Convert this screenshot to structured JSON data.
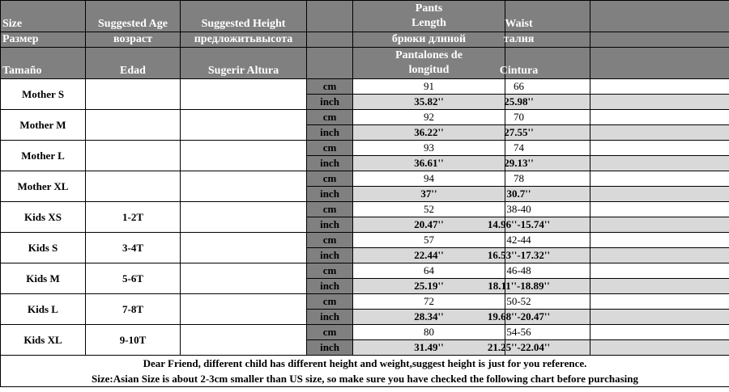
{
  "header": {
    "row1": {
      "size": "Size",
      "age": "Suggested Age",
      "height": "Suggested Height",
      "pants": [
        "Pants",
        "Length"
      ],
      "waist": "Waist"
    },
    "row2": {
      "size": "Размер",
      "age": "возраст",
      "height": "предложитьвысота",
      "pants": "брюки длиной",
      "waist": "талия"
    },
    "row3": {
      "size": "Tamaño",
      "age": "Edad",
      "height": "Sugerir Altura",
      "pants": [
        "Pantalones de",
        "longitud"
      ],
      "waist": "Cintura"
    }
  },
  "units": {
    "cm": "cm",
    "inch": "inch"
  },
  "rows": [
    {
      "name": "Mother S",
      "age": "",
      "cm_length": "91",
      "cm_waist": "66",
      "in_length": "35.82''",
      "in_waist": "25.98''"
    },
    {
      "name": "Mother M",
      "age": "",
      "cm_length": "92",
      "cm_waist": "70",
      "in_length": "36.22''",
      "in_waist": "27.55''"
    },
    {
      "name": "Mother L",
      "age": "",
      "cm_length": "93",
      "cm_waist": "74",
      "in_length": "36.61''",
      "in_waist": "29.13''"
    },
    {
      "name": "Mother XL",
      "age": "",
      "cm_length": "94",
      "cm_waist": "78",
      "in_length": "37''",
      "in_waist": "30.7''"
    },
    {
      "name": "Kids XS",
      "age": "1-2T",
      "cm_length": "52",
      "cm_waist": "38-40",
      "in_length": "20.47''",
      "in_waist": "14.96''-15.74''"
    },
    {
      "name": "Kids S",
      "age": "3-4T",
      "cm_length": "57",
      "cm_waist": "42-44",
      "in_length": "22.44''",
      "in_waist": "16.53''-17.32''"
    },
    {
      "name": "Kids M",
      "age": "5-6T",
      "cm_length": "64",
      "cm_waist": "46-48",
      "in_length": "25.19''",
      "in_waist": "18.11''-18.89''"
    },
    {
      "name": "Kids L",
      "age": "7-8T",
      "cm_length": "72",
      "cm_waist": "50-52",
      "in_length": "28.34''",
      "in_waist": "19.68''-20.47''"
    },
    {
      "name": "Kids XL",
      "age": "9-10T",
      "cm_length": "80",
      "cm_waist": "54-56",
      "in_length": "31.49''",
      "in_waist": "21.25''-22.04''"
    }
  ],
  "footer": {
    "line1": "Dear Friend, different child has different height and weight,suggest height is just for you reference.",
    "line2": "Size:Asian Size is about 2-3cm smaller than US size, so make sure you have checked the following chart before purchasing"
  },
  "colors": {
    "header_bg": "#808080",
    "header_text": "#ffffff",
    "inch_row_bg": "#d9d9d9",
    "border": "#000000"
  }
}
